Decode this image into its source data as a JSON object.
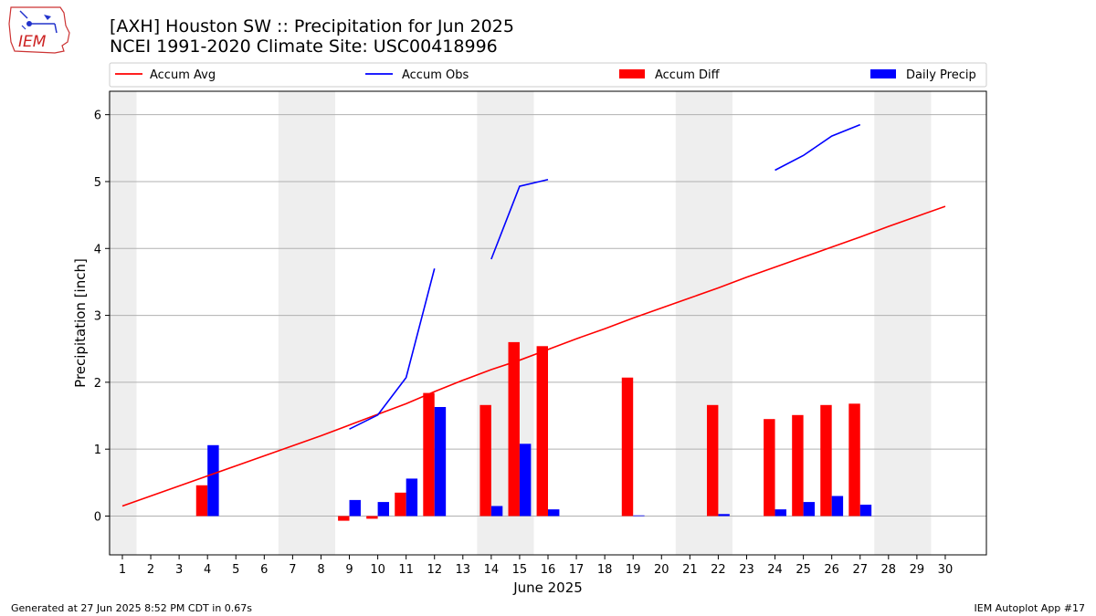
{
  "title_line1": "[AXH] Houston SW :: Precipitation for Jun 2025",
  "title_line2": "NCEI 1991-2020 Climate Site: USC00418996",
  "logo_text": "IEM",
  "footer_left": "Generated at 27 Jun 2025 8:52 PM CDT in 0.67s",
  "footer_right": "IEM Autoplot App #17",
  "colors": {
    "accum_avg": "#ff0000",
    "accum_obs": "#0000ff",
    "accum_diff": "#ff0000",
    "daily_precip": "#0000ff",
    "weekend_band": "#eeeeee",
    "grid": "#b0b0b0"
  },
  "chart_data": {
    "type": "bar",
    "xlabel": "June 2025",
    "ylabel": "Precipitation [inch]",
    "xlim": [
      0.55,
      31.45
    ],
    "ylim": [
      -0.58,
      6.35
    ],
    "x_ticks": [
      1,
      2,
      3,
      4,
      5,
      6,
      7,
      8,
      9,
      10,
      11,
      12,
      13,
      14,
      15,
      16,
      17,
      18,
      19,
      20,
      21,
      22,
      23,
      24,
      25,
      26,
      27,
      28,
      29,
      30
    ],
    "x_tick_labels": [
      "1",
      "2",
      "3",
      "4",
      "5",
      "6",
      "7",
      "8",
      "9",
      "10",
      "11",
      "12",
      "13",
      "14",
      "15",
      "16",
      "17",
      "18",
      "19",
      "20",
      "21",
      "22",
      "23",
      "24",
      "25",
      "26",
      "27",
      "28",
      "29",
      "30"
    ],
    "y_ticks": [
      0,
      1,
      2,
      3,
      4,
      5,
      6
    ],
    "y_tick_labels": [
      "0",
      "1",
      "2",
      "3",
      "4",
      "5",
      "6"
    ],
    "grid": "horizontal",
    "legend_placement": "top, above plot",
    "weekend_bands": [
      [
        0.5,
        1.5
      ],
      [
        6.5,
        8.5
      ],
      [
        13.5,
        15.5
      ],
      [
        20.5,
        22.5
      ],
      [
        27.5,
        29.5
      ]
    ],
    "legend": [
      "Accum Avg",
      "Accum Obs",
      "Accum Diff",
      "Daily Precip"
    ],
    "series": [
      {
        "name": "Accum Avg",
        "kind": "line",
        "x": [
          1,
          2,
          3,
          4,
          5,
          6,
          7,
          8,
          9,
          10,
          11,
          12,
          13,
          14,
          15,
          16,
          17,
          18,
          19,
          20,
          21,
          22,
          23,
          24,
          25,
          26,
          27,
          28,
          29,
          30
        ],
        "values": [
          0.15,
          0.3,
          0.45,
          0.6,
          0.75,
          0.9,
          1.05,
          1.2,
          1.36,
          1.52,
          1.68,
          1.86,
          2.03,
          2.19,
          2.33,
          2.49,
          2.65,
          2.8,
          2.96,
          3.11,
          3.26,
          3.41,
          3.57,
          3.72,
          3.87,
          4.02,
          4.17,
          4.33,
          4.48,
          4.63
        ]
      },
      {
        "name": "Accum Obs",
        "kind": "line",
        "segments": [
          {
            "x": [
              9,
              10,
              11,
              12
            ],
            "values": [
              1.3,
              1.51,
              2.07,
              3.7
            ]
          },
          {
            "x": [
              14,
              15,
              16
            ],
            "values": [
              3.84,
              4.93,
              5.03
            ]
          },
          {
            "x": [
              24,
              25,
              26,
              27
            ],
            "values": [
              5.17,
              5.39,
              5.68,
              5.85
            ]
          }
        ]
      },
      {
        "name": "Accum Diff",
        "kind": "bar",
        "x": [
          4,
          9,
          10,
          11,
          12,
          14,
          15,
          16,
          19,
          22,
          24,
          25,
          26,
          27
        ],
        "values": [
          0.46,
          -0.07,
          -0.04,
          0.35,
          1.84,
          1.66,
          2.6,
          2.54,
          2.07,
          1.66,
          1.45,
          1.51,
          1.66,
          1.68
        ]
      },
      {
        "name": "Daily Precip",
        "kind": "bar",
        "x": [
          4,
          9,
          10,
          11,
          12,
          14,
          15,
          16,
          19,
          22,
          24,
          25,
          26,
          27
        ],
        "values": [
          1.06,
          0.24,
          0.21,
          0.56,
          1.63,
          0.15,
          1.08,
          0.1,
          0.01,
          0.03,
          0.1,
          0.21,
          0.3,
          0.17
        ]
      }
    ]
  }
}
